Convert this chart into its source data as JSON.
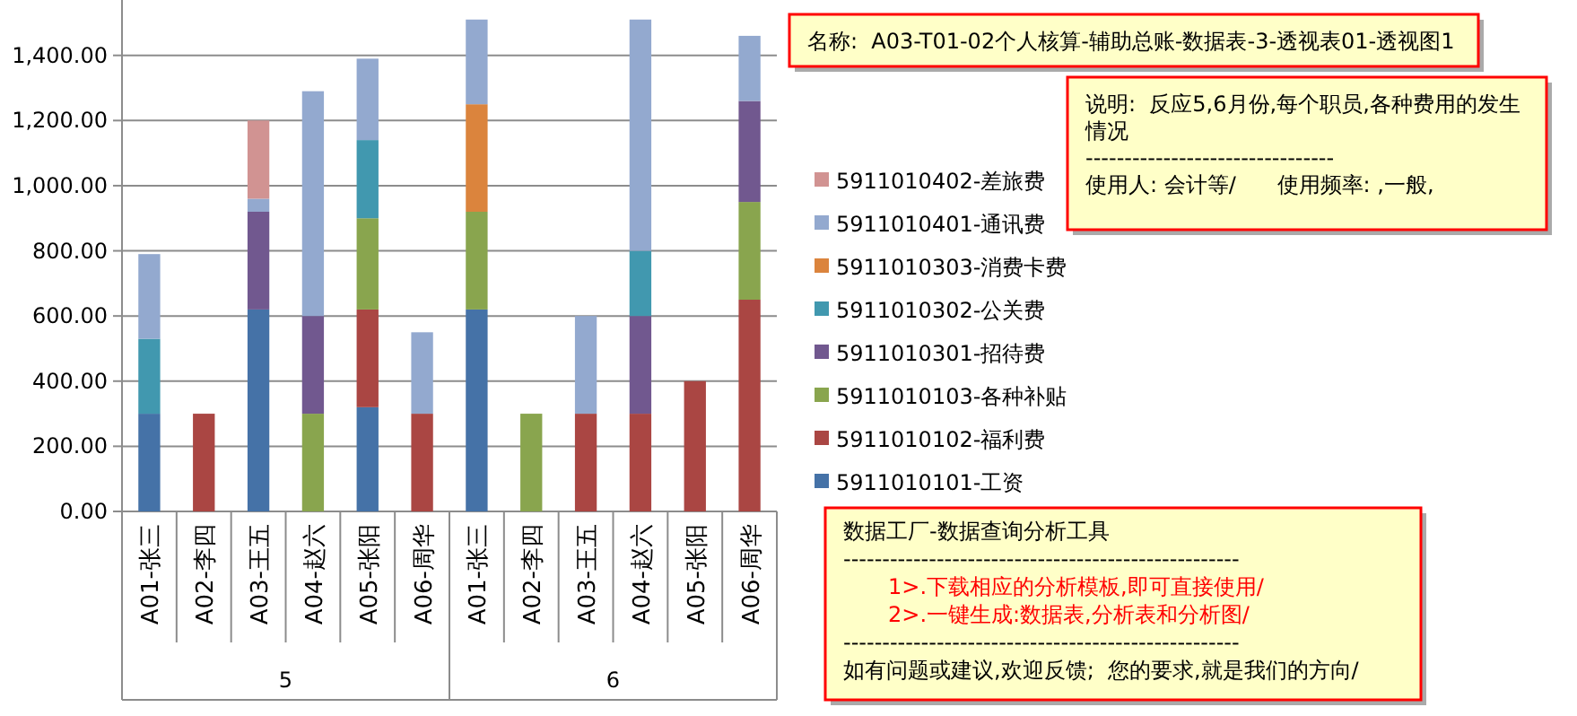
{
  "chart_data": {
    "type": "bar",
    "stacked": true,
    "title": "名称:  A03-T01-02个人核算-辅助总账-数据表-3-透视表01-透视图1",
    "categories": [
      "A01-张三",
      "A02-李四",
      "A03-王五",
      "A04-赵六",
      "A05-张阳",
      "A06-周华",
      "A01-张三",
      "A02-李四",
      "A03-王五",
      "A04-赵六",
      "A05-张阳",
      "A06-周华"
    ],
    "series": [
      {
        "name": "5911010101-工资",
        "color": "#4572a7",
        "values": [
          300,
          null,
          620,
          null,
          320,
          null,
          620,
          null,
          null,
          null,
          null,
          null
        ]
      },
      {
        "name": "5911010102-福利费",
        "color": "#aa4643",
        "values": [
          null,
          300,
          null,
          null,
          300,
          300,
          null,
          null,
          300,
          300,
          400,
          650
        ]
      },
      {
        "name": "5911010103-各种补贴",
        "color": "#89a54e",
        "values": [
          null,
          null,
          null,
          300,
          280,
          null,
          300,
          300,
          null,
          null,
          null,
          300
        ]
      },
      {
        "name": "5911010301-招待费",
        "color": "#71588f",
        "values": [
          null,
          null,
          300,
          300,
          null,
          null,
          null,
          null,
          null,
          300,
          null,
          310
        ]
      },
      {
        "name": "5911010302-公关费",
        "color": "#4198af",
        "values": [
          230,
          null,
          null,
          null,
          240,
          null,
          null,
          null,
          null,
          200,
          null,
          null
        ]
      },
      {
        "name": "5911010303-消费卡费",
        "color": "#db843d",
        "values": [
          null,
          null,
          null,
          null,
          null,
          null,
          330,
          null,
          null,
          null,
          null,
          null
        ]
      },
      {
        "name": "5911010401-通讯费",
        "color": "#93a9cf",
        "values": [
          260,
          null,
          40,
          690,
          250,
          250,
          260,
          null,
          300,
          710,
          null,
          200
        ]
      },
      {
        "name": "5911010402-差旅费",
        "color": "#d19392",
        "values": [
          null,
          null,
          240,
          null,
          null,
          null,
          null,
          null,
          null,
          null,
          null,
          null
        ]
      }
    ],
    "ylim": [
      0,
      1570
    ],
    "yticks": [
      {
        "value": 0,
        "label": "0.00"
      },
      {
        "value": 200,
        "label": "200.00"
      },
      {
        "value": 400,
        "label": "400.00"
      },
      {
        "value": 600,
        "label": "600.00"
      },
      {
        "value": 800,
        "label": "800.00"
      },
      {
        "value": 1000,
        "label": "1,000.00"
      },
      {
        "value": 1200,
        "label": "1,200.00"
      },
      {
        "value": 1400,
        "label": "1,400.00"
      }
    ],
    "grid": "y",
    "legend": "right",
    "annotations": [
      {
        "text": "5"
      },
      {
        "text": "6"
      },
      "说明:  反应5,6月份,每个职员,各种费用的发生情况",
      "--------------------------------\n使用人: 会计等/      使用频率: ,一般,",
      "数据工厂-数据查询分析工具\n---------------------------------------------------",
      "1>.下载相应的分析模板,即可直接使用/\n2>.一键生成:数据表,分析表和分析图/",
      "---------------------------------------------------\n如有问题或建议,欢迎反馈;  您的要求,就是我们的方向/"
    ]
  }
}
